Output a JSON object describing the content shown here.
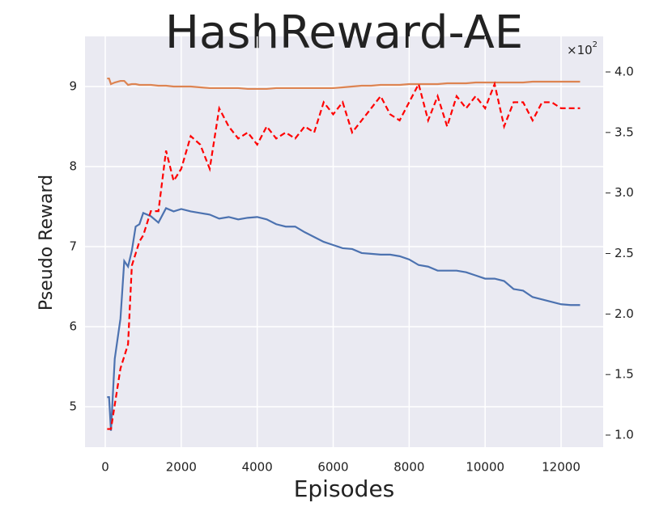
{
  "chart_data": {
    "type": "line",
    "title": "HashReward-AE",
    "xlabel": "Episodes",
    "ylabel": "Pseudo Reward",
    "y2_offset_text": "×10",
    "y2_offset_exponent": "2",
    "x": [
      50,
      100,
      150,
      250,
      400,
      500,
      600,
      700,
      800,
      900,
      1000,
      1200,
      1400,
      1600,
      1800,
      2000,
      2250,
      2500,
      2750,
      3000,
      3250,
      3500,
      3750,
      4000,
      4250,
      4500,
      4750,
      5000,
      5250,
      5500,
      5750,
      6000,
      6250,
      6500,
      6750,
      7000,
      7250,
      7500,
      7750,
      8000,
      8250,
      8500,
      8750,
      9000,
      9250,
      9500,
      9750,
      10000,
      10250,
      10500,
      10750,
      11000,
      11250,
      11500,
      11750,
      12000,
      12250,
      12500
    ],
    "series": [
      {
        "color": "#4c72b0",
        "axis": "y",
        "dashed": false,
        "values": [
          5.12,
          5.12,
          4.7,
          5.6,
          6.1,
          6.82,
          6.75,
          6.95,
          7.25,
          7.28,
          7.42,
          7.38,
          7.3,
          7.48,
          7.44,
          7.47,
          7.44,
          7.42,
          7.4,
          7.35,
          7.37,
          7.34,
          7.36,
          7.37,
          7.34,
          7.28,
          7.25,
          7.25,
          7.18,
          7.12,
          7.06,
          7.02,
          6.98,
          6.97,
          6.92,
          6.91,
          6.9,
          6.9,
          6.88,
          6.84,
          6.77,
          6.75,
          6.7,
          6.7,
          6.7,
          6.68,
          6.64,
          6.6,
          6.6,
          6.57,
          6.47,
          6.45,
          6.37,
          6.34,
          6.31,
          6.28,
          6.27,
          6.27
        ]
      },
      {
        "color": "#dd8452",
        "axis": "y",
        "dashed": false,
        "values": [
          9.1,
          9.1,
          9.03,
          9.05,
          9.07,
          9.07,
          9.02,
          9.03,
          9.03,
          9.02,
          9.02,
          9.02,
          9.01,
          9.01,
          9.0,
          9.0,
          9.0,
          8.99,
          8.98,
          8.98,
          8.98,
          8.98,
          8.97,
          8.97,
          8.97,
          8.98,
          8.98,
          8.98,
          8.98,
          8.98,
          8.98,
          8.98,
          8.99,
          9.0,
          9.01,
          9.01,
          9.02,
          9.02,
          9.02,
          9.03,
          9.03,
          9.03,
          9.03,
          9.04,
          9.04,
          9.04,
          9.05,
          9.05,
          9.05,
          9.05,
          9.05,
          9.05,
          9.06,
          9.06,
          9.06,
          9.06,
          9.06,
          9.06
        ]
      },
      {
        "color": "#ff0000",
        "axis": "y2",
        "dashed": true,
        "values": [
          1.05,
          1.05,
          1.05,
          1.25,
          1.55,
          1.65,
          1.75,
          2.4,
          2.5,
          2.6,
          2.65,
          2.85,
          2.85,
          3.35,
          3.1,
          3.2,
          3.47,
          3.4,
          3.2,
          3.7,
          3.55,
          3.45,
          3.5,
          3.4,
          3.55,
          3.45,
          3.5,
          3.45,
          3.55,
          3.5,
          3.75,
          3.65,
          3.75,
          3.5,
          3.6,
          3.7,
          3.8,
          3.65,
          3.6,
          3.75,
          3.9,
          3.6,
          3.8,
          3.55,
          3.8,
          3.7,
          3.8,
          3.7,
          3.9,
          3.55,
          3.75,
          3.75,
          3.6,
          3.75,
          3.75,
          3.7,
          3.7,
          3.7
        ]
      }
    ],
    "xlim": [
      -533,
      13108
    ],
    "xticks": [
      0,
      2000,
      4000,
      6000,
      8000,
      10000,
      12000
    ],
    "ylim": [
      4.495,
      9.626
    ],
    "yticks": [
      5,
      6,
      7,
      8,
      9
    ],
    "y2lim": [
      0.9,
      4.294
    ],
    "y2ticks": [
      {
        "value": 1,
        "label": "1.0"
      },
      {
        "value": 1.5,
        "label": "1.5"
      },
      {
        "value": 2,
        "label": "2.0"
      },
      {
        "value": 2.5,
        "label": "2.5"
      },
      {
        "value": 3,
        "label": "3.0"
      },
      {
        "value": 3.5,
        "label": "3.5"
      },
      {
        "value": 4,
        "label": "4.0"
      }
    ],
    "grid": true
  }
}
